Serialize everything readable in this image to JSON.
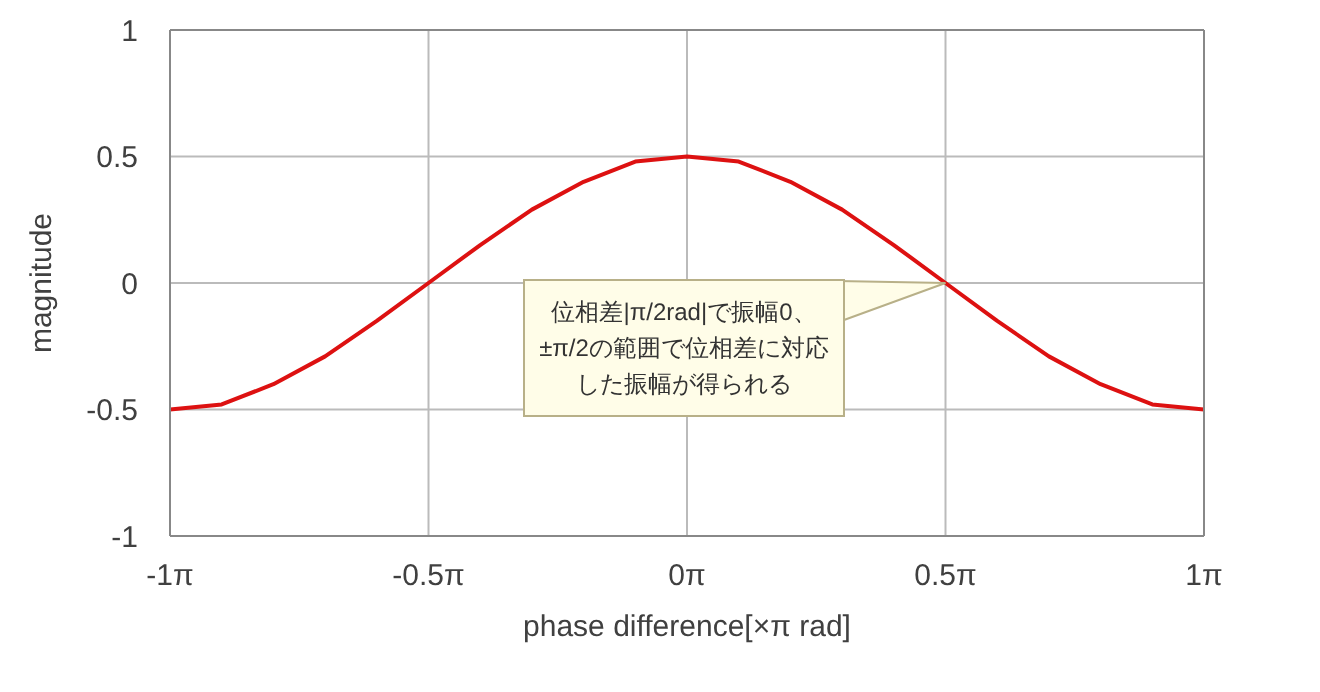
{
  "chart_data": {
    "type": "line",
    "xlabel": "phase difference[×π rad]",
    "ylabel": "magnitude",
    "categories": [
      "-1π",
      null,
      null,
      null,
      null,
      "-0.5π",
      null,
      null,
      null,
      null,
      "0π",
      null,
      null,
      null,
      null,
      "0.5π",
      null,
      null,
      null,
      null,
      "1π"
    ],
    "series": [
      {
        "color": "#dd1111",
        "values": [
          -0.5,
          -0.48,
          -0.4,
          -0.29,
          -0.15,
          0,
          0.15,
          0.29,
          0.4,
          0.48,
          0.5,
          0.48,
          0.4,
          0.29,
          0.15,
          0,
          -0.15,
          -0.29,
          -0.4,
          -0.48,
          -0.5
        ]
      }
    ],
    "ylim": [
      -1,
      1
    ],
    "yticks": [
      -1,
      -0.5,
      0,
      0.5,
      1
    ],
    "grid": true,
    "legend": false,
    "marker": "none",
    "line_style": "solid",
    "annotations": [
      {
        "text": "位相差|π/2rad|で振幅0、±π/2の範囲で位相差に対応した振幅が得られる",
        "x": "0.5π",
        "y": 0
      }
    ]
  }
}
